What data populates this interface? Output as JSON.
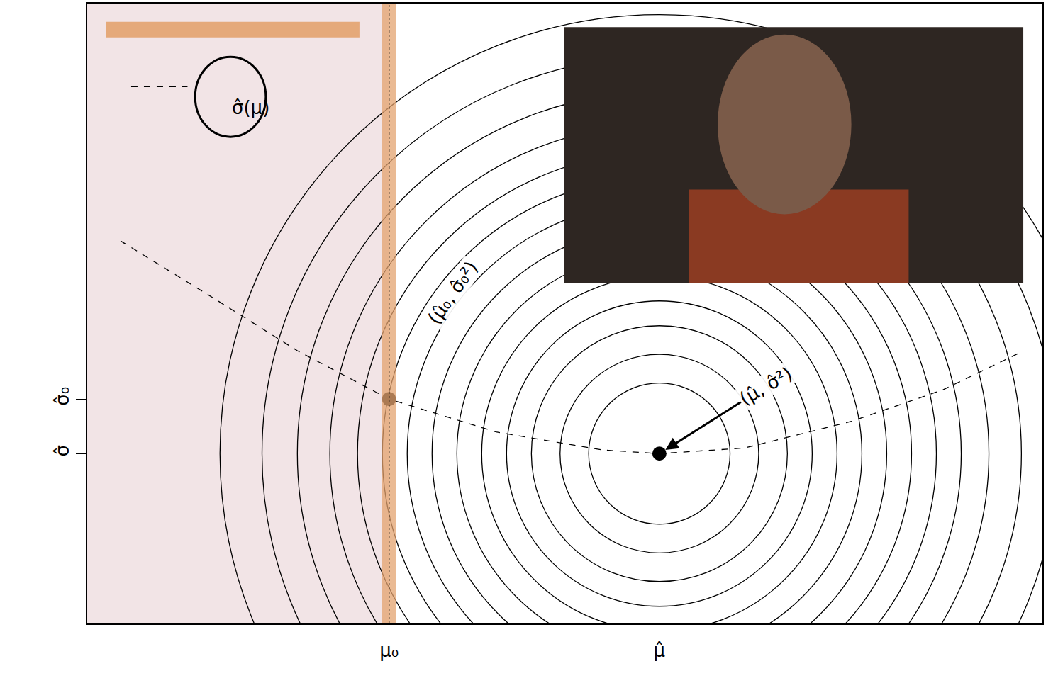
{
  "chart_data": {
    "type": "contour",
    "xlim": [
      0,
      100
    ],
    "ylim": [
      0,
      100
    ],
    "xticks": [
      {
        "value": 31.6,
        "label": "μ₀"
      },
      {
        "value": 59.9,
        "label": "μ̂"
      }
    ],
    "yticks": [
      {
        "value": 27.4,
        "label": "σ̂"
      },
      {
        "value": 36.2,
        "label": "σ̂₀"
      }
    ],
    "grid": false,
    "center": {
      "x": 59.9,
      "y": 27.4
    },
    "contour_radii": [
      7.4,
      10.4,
      13.4,
      16.0,
      18.6,
      21.2,
      23.8,
      26.4,
      29.0,
      31.6,
      34.5,
      37.9,
      41.6,
      46.0
    ],
    "series": [
      {
        "name": "σ̂(μ)",
        "color": "#000000",
        "line_style": "dashed",
        "x": [
          3.5,
          13.1,
          22.0,
          31.6,
          42.8,
          53.9,
          59.9,
          68.8,
          80.0,
          89.6,
          97.8
        ],
        "values": [
          61.7,
          52.6,
          44.0,
          36.2,
          30.9,
          28.0,
          27.4,
          28.3,
          32.6,
          37.7,
          43.8
        ]
      }
    ],
    "points": [
      {
        "x": 31.6,
        "y": 36.2,
        "label": "(μ̂₀, σ̂₀²)"
      },
      {
        "x": 59.9,
        "y": 27.4,
        "label": "(μ̂, σ̂²)"
      }
    ],
    "shaded_region": {
      "x": [
        0,
        31.6
      ],
      "color": "#f2e4e6"
    },
    "reference_line": {
      "x": 31.6,
      "line_style": "dotted"
    },
    "highlight_color": "#e4a36f"
  }
}
